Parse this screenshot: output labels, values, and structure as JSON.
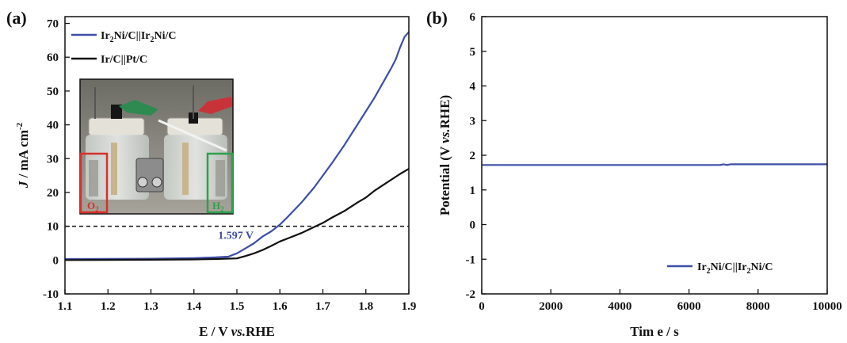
{
  "colors": {
    "blue": "#3e4ea8",
    "black": "#111111",
    "o2_box": "#d8302a",
    "h2_box": "#2ea04d"
  },
  "chart_data": [
    {
      "type": "line",
      "panel_label": "(a)",
      "xlabel_prefix": "E / V ",
      "xlabel_italic": "vs.",
      "xlabel_suffix": "RHE",
      "ylabel_italic": "J",
      "ylabel_rest": " / mA cm",
      "ylabel_sup": "-2",
      "xlim": [
        1.1,
        1.9
      ],
      "ylim": [
        -10,
        72
      ],
      "xticks": [
        "1.1",
        "1.2",
        "1.3",
        "1.4",
        "1.5",
        "1.6",
        "1.7",
        "1.8",
        "1.9"
      ],
      "yticks": [
        "-10",
        "0",
        "10",
        "20",
        "30",
        "40",
        "50",
        "60",
        "70"
      ],
      "series": [
        {
          "name": "Ir2Ni/C||Ir2Ni/C",
          "legend_parts": [
            "Ir",
            "2",
            "Ni/C||Ir",
            "2",
            "Ni/C"
          ],
          "color": "#3e4ea8",
          "x": [
            1.1,
            1.3,
            1.4,
            1.45,
            1.48,
            1.5,
            1.52,
            1.54,
            1.56,
            1.58,
            1.6,
            1.62,
            1.65,
            1.68,
            1.7,
            1.72,
            1.75,
            1.78,
            1.8,
            1.82,
            1.84,
            1.86,
            1.87,
            1.88,
            1.89,
            1.9
          ],
          "y": [
            0.3,
            0.4,
            0.6,
            0.8,
            1.0,
            2.0,
            3.5,
            5.0,
            7.0,
            8.5,
            10.5,
            13.0,
            17.0,
            21.5,
            25.0,
            28.5,
            34.0,
            40.0,
            44.0,
            48.0,
            52.5,
            57.0,
            59.5,
            63.0,
            66.0,
            67.5
          ]
        },
        {
          "name": "Ir/C||Pt/C",
          "legend_parts": [
            "Ir/C||Pt/C"
          ],
          "color": "#111111",
          "x": [
            1.1,
            1.3,
            1.4,
            1.45,
            1.5,
            1.52,
            1.54,
            1.56,
            1.58,
            1.6,
            1.62,
            1.65,
            1.68,
            1.7,
            1.72,
            1.75,
            1.78,
            1.8,
            1.82,
            1.85,
            1.88,
            1.9
          ],
          "y": [
            0.0,
            0.1,
            0.2,
            0.3,
            0.5,
            1.2,
            2.0,
            3.0,
            4.2,
            5.5,
            6.5,
            8.0,
            9.8,
            11.0,
            12.5,
            14.5,
            17.0,
            18.5,
            20.5,
            23.0,
            25.5,
            27.0
          ]
        }
      ],
      "reference_line": {
        "y": 10,
        "style": "dashed"
      },
      "annotation": {
        "text": "1.597 V",
        "x": 1.597,
        "y": 10
      },
      "inset_labels": {
        "left": "O",
        "left_sub": "2",
        "right": "H",
        "right_sub": "2"
      }
    },
    {
      "type": "line",
      "panel_label": "(b)",
      "xlabel": "Tim e / s",
      "ylabel_prefix": "Potential (V ",
      "ylabel_italic": "vs.",
      "ylabel_suffix": "RHE)",
      "xlim": [
        0,
        10000
      ],
      "ylim": [
        -2,
        6
      ],
      "xticks": [
        "0",
        "2000",
        "4000",
        "6000",
        "8000",
        "10000"
      ],
      "yticks": [
        "-2",
        "-1",
        "0",
        "1",
        "2",
        "3",
        "4",
        "5",
        "6"
      ],
      "legend_position": "bottom-right",
      "series": [
        {
          "name": "Ir2Ni/C||Ir2Ni/C",
          "legend_parts": [
            "Ir",
            "2",
            "Ni/C||Ir",
            "2",
            "Ni/C"
          ],
          "color": "#3e4ea8",
          "x": [
            0,
            1000,
            2000,
            3000,
            4000,
            5000,
            6000,
            6900,
            7000,
            7100,
            7200,
            8000,
            9000,
            10000
          ],
          "y": [
            1.72,
            1.72,
            1.72,
            1.72,
            1.72,
            1.72,
            1.72,
            1.72,
            1.74,
            1.72,
            1.74,
            1.74,
            1.74,
            1.74
          ]
        }
      ]
    }
  ]
}
